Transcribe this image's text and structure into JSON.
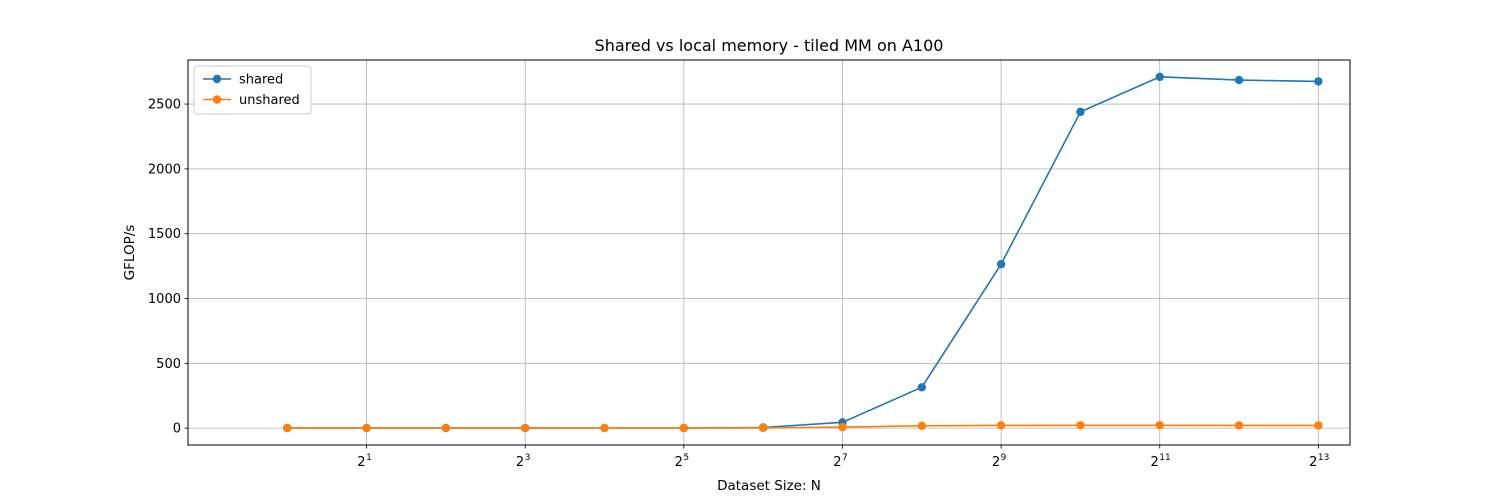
{
  "chart_data": {
    "type": "line",
    "title": "Shared vs local memory - tiled MM on A100",
    "xlabel": "Dataset Size: N",
    "ylabel": "GFLOP/s",
    "x_scale": "log2",
    "x_tick_base": "2",
    "x_tick_exponents": [
      "1",
      "3",
      "5",
      "7",
      "9",
      "11",
      "13"
    ],
    "x": [
      1,
      2,
      4,
      8,
      16,
      32,
      64,
      128,
      256,
      512,
      1024,
      2048,
      4096,
      8192
    ],
    "xlim": [
      0.42,
      10800
    ],
    "ylim": [
      -130,
      2840
    ],
    "yticks": [
      0,
      500,
      1000,
      1500,
      2000,
      2500
    ],
    "ytick_labels": [
      "0",
      "500",
      "1000",
      "1500",
      "2000",
      "2500"
    ],
    "grid": true,
    "legend": "upper left",
    "series": [
      {
        "name": "shared",
        "color": "#1f77b4",
        "marker": "circle",
        "values": [
          0.5,
          0.8,
          1.0,
          1.0,
          1.1,
          1.2,
          5,
          45,
          315,
          1265,
          2440,
          2710,
          2685,
          2675
        ]
      },
      {
        "name": "unshared",
        "color": "#ff7f0e",
        "marker": "circle",
        "values": [
          0.3,
          0.5,
          0.6,
          0.7,
          0.8,
          0.9,
          2,
          8,
          18,
          21,
          22,
          22,
          21,
          21
        ]
      }
    ]
  }
}
